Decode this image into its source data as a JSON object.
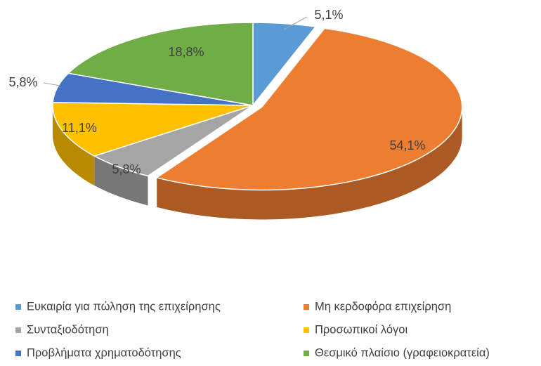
{
  "chart_data": {
    "type": "pie3d",
    "categories": [
      "Ευκαιρία για πώληση της επιχείρησης",
      "Μη κερδοφόρα επιχείρηση",
      "Συνταξιοδότηση",
      "Προσωπικοί λόγοι",
      "Προβλήματα χρηματοδότησης",
      "Θεσμικό πλαίσιο (γραφειοκρατεία)"
    ],
    "values": [
      5.1,
      54.1,
      5.8,
      11.1,
      5.8,
      18.8
    ],
    "value_labels": [
      "5,1%",
      "54,1%",
      "5,8%",
      "11,1%",
      "5,8%",
      "18,8%"
    ],
    "colors": [
      "#5b9bd5",
      "#ed7d31",
      "#a5a5a5",
      "#ffc000",
      "#4472c4",
      "#70ad47"
    ],
    "legend": "bottom"
  }
}
